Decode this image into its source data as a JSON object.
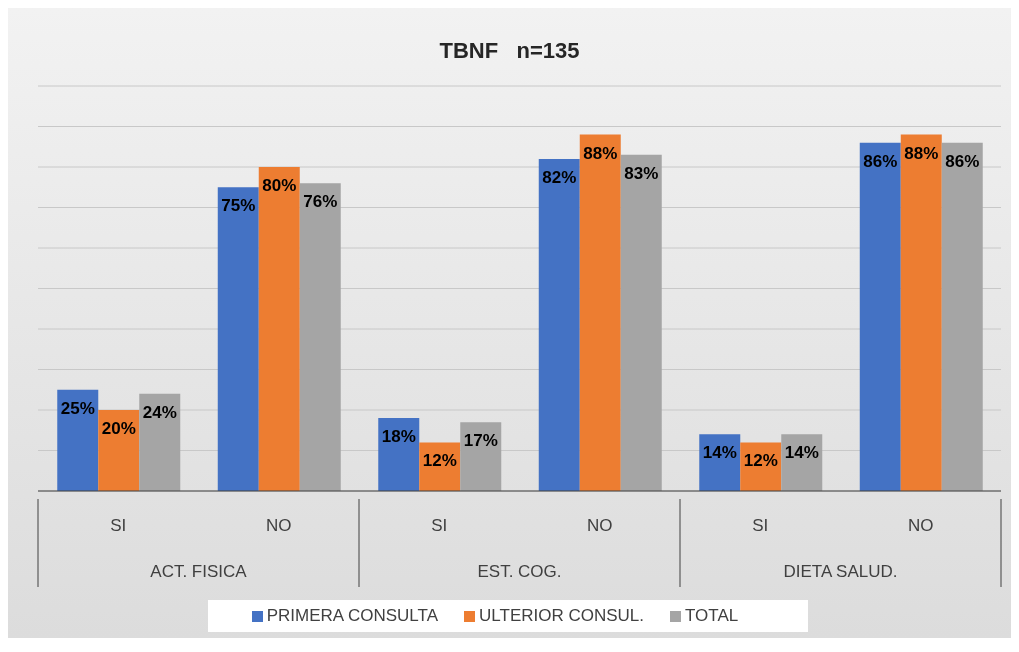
{
  "chart_data": {
    "type": "bar",
    "title": "TBNF   n=135",
    "categories": [
      "SI",
      "NO",
      "SI",
      "NO",
      "SI",
      "NO"
    ],
    "annotations": [
      "ACT. FISICA",
      "EST. COG.",
      "DIETA SALUD."
    ],
    "series": [
      {
        "name": "PRIMERA CONSULTA",
        "color": "#4472c4",
        "values": [
          25,
          75,
          18,
          82,
          14,
          86
        ],
        "value_labels": [
          "25%",
          "75%",
          "18%",
          "82%",
          "14%",
          "86%"
        ]
      },
      {
        "name": "ULTERIOR CONSUL.",
        "color": "#ed7d31",
        "values": [
          20,
          80,
          12,
          88,
          12,
          88
        ],
        "value_labels": [
          "20%",
          "80%",
          "12%",
          "88%",
          "12%",
          "88%"
        ]
      },
      {
        "name": "TOTAL",
        "color": "#a5a5a5",
        "values": [
          24,
          76,
          17,
          83,
          14,
          86
        ],
        "value_labels": [
          "24%",
          "76%",
          "17%",
          "83%",
          "14%",
          "86%"
        ]
      }
    ],
    "ylim": [
      0,
      100
    ],
    "tick_labels": "x",
    "grid": "y",
    "legend": "bottom"
  }
}
